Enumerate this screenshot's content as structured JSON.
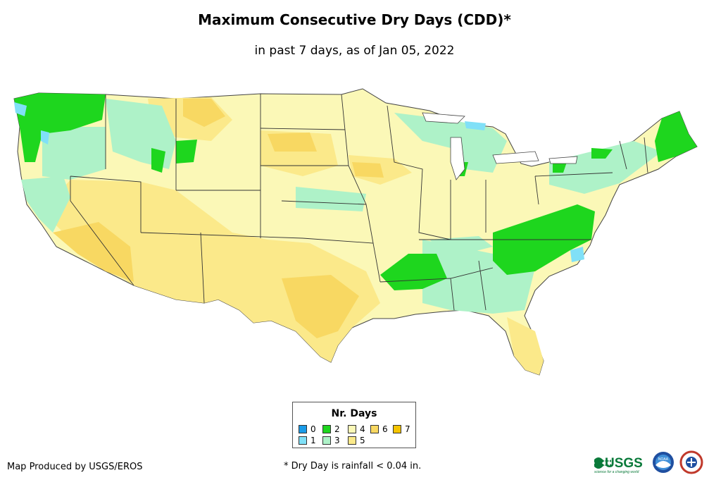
{
  "title": "Maximum Consecutive Dry Days (CDD)*",
  "subtitle": "in past 7 days, as of Jan 05, 2022",
  "legend": {
    "title": "Nr. Days",
    "items": [
      {
        "label": "0",
        "color": "#1a9be8"
      },
      {
        "label": "1",
        "color": "#80e0f7"
      },
      {
        "label": "2",
        "color": "#1ed61e"
      },
      {
        "label": "3",
        "color": "#aef2c8"
      },
      {
        "label": "4",
        "color": "#fbf8b7"
      },
      {
        "label": "5",
        "color": "#fbe98a"
      },
      {
        "label": "6",
        "color": "#f8d862"
      },
      {
        "label": "7",
        "color": "#f5c400"
      }
    ]
  },
  "credit": "Map Produced by USGS/EROS",
  "footnote": "* Dry Day is rainfall < 0.04 in.",
  "logos": {
    "usgs_text": "USGS",
    "usgs_tagline": "science for a changing world",
    "noaa_text": "NOAA"
  }
}
